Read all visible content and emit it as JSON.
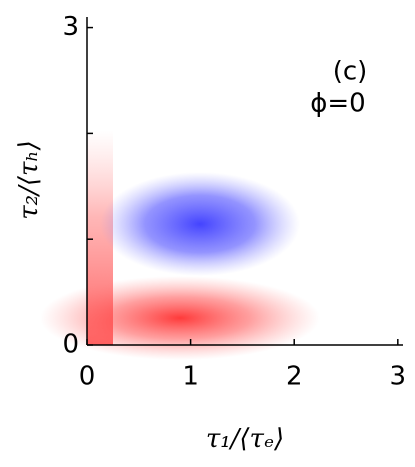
{
  "chart_data": {
    "type": "heatmap",
    "panel_label": "(c)",
    "annotation": "ϕ=0",
    "x_label": "τ₁/⟨τₑ⟩",
    "y_label": "τ₂/⟨τₕ⟩",
    "xlim": [
      0,
      3.05
    ],
    "ylim": [
      0,
      3.1
    ],
    "xticks": [
      0,
      1,
      2,
      3
    ],
    "yticks": [
      0,
      3
    ],
    "yminorticks": [
      1,
      2
    ],
    "colors": [
      "#ff3030",
      "#3a3aff"
    ]
  }
}
